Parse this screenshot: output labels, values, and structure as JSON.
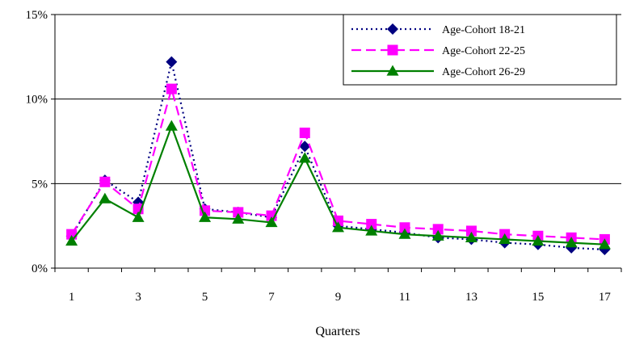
{
  "chart_data": {
    "type": "line",
    "title": "",
    "xlabel": "Quarters",
    "ylabel": "",
    "x": [
      1,
      2,
      3,
      4,
      5,
      6,
      7,
      8,
      9,
      10,
      11,
      12,
      13,
      14,
      15,
      16,
      17
    ],
    "xticks": [
      1,
      3,
      5,
      7,
      9,
      11,
      13,
      15,
      17
    ],
    "xtick_labels": [
      "1",
      "3",
      "5",
      "7",
      "9",
      "11",
      "13",
      "15",
      "17"
    ],
    "ylim": [
      0,
      15
    ],
    "yticks": [
      0,
      5,
      10,
      15
    ],
    "ytick_labels": [
      "0%",
      "5%",
      "10%",
      "15%"
    ],
    "grid": "horizontal",
    "legend_position": "top-right",
    "series": [
      {
        "name": "Age-Cohort 18-21",
        "color": "#000080",
        "line_style": "dotted",
        "marker": "diamond",
        "values": [
          1.9,
          5.2,
          3.9,
          12.2,
          3.5,
          3.3,
          3.0,
          7.2,
          2.5,
          2.3,
          2.1,
          1.8,
          1.7,
          1.5,
          1.4,
          1.2,
          1.1
        ]
      },
      {
        "name": "Age-Cohort 22-25",
        "color": "#ff00ff",
        "line_style": "dashed",
        "marker": "square",
        "values": [
          2.0,
          5.1,
          3.5,
          10.6,
          3.4,
          3.3,
          3.1,
          8.0,
          2.8,
          2.6,
          2.4,
          2.3,
          2.2,
          2.0,
          1.9,
          1.8,
          1.7
        ]
      },
      {
        "name": "Age-Cohort 26-29",
        "color": "#008000",
        "line_style": "solid",
        "marker": "triangle",
        "values": [
          1.6,
          4.1,
          3.0,
          8.4,
          3.0,
          2.9,
          2.7,
          6.5,
          2.4,
          2.2,
          2.0,
          1.9,
          1.8,
          1.7,
          1.6,
          1.5,
          1.4
        ]
      }
    ]
  }
}
